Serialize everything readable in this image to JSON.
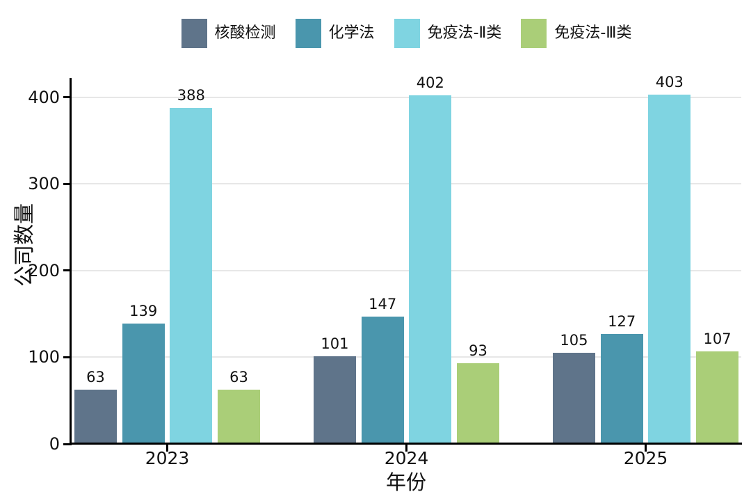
{
  "chart_data": {
    "type": "bar",
    "title": "",
    "categories": [
      "2023",
      "2024",
      "2025"
    ],
    "series": [
      {
        "name": "核酸检测",
        "color": "#5f748a",
        "values": [
          63,
          101,
          105
        ]
      },
      {
        "name": "化学法",
        "color": "#4a96ad",
        "values": [
          139,
          147,
          127
        ]
      },
      {
        "name": "免疫法-Ⅱ类",
        "color": "#7fd4e1",
        "values": [
          388,
          402,
          403
        ]
      },
      {
        "name": "免疫法-Ⅲ类",
        "color": "#aace78",
        "values": [
          63,
          93,
          107
        ]
      }
    ],
    "xlabel": "年份",
    "ylabel": "公司数量",
    "ylim": [
      0,
      420
    ],
    "yticks": [
      0,
      100,
      200,
      300,
      400
    ],
    "grid": "horizontal",
    "legend_position": "top",
    "value_labels": true
  },
  "colors": {
    "axis": "#000000",
    "grid": "#e7e7e7",
    "text": "#111111",
    "background": "#ffffff"
  }
}
